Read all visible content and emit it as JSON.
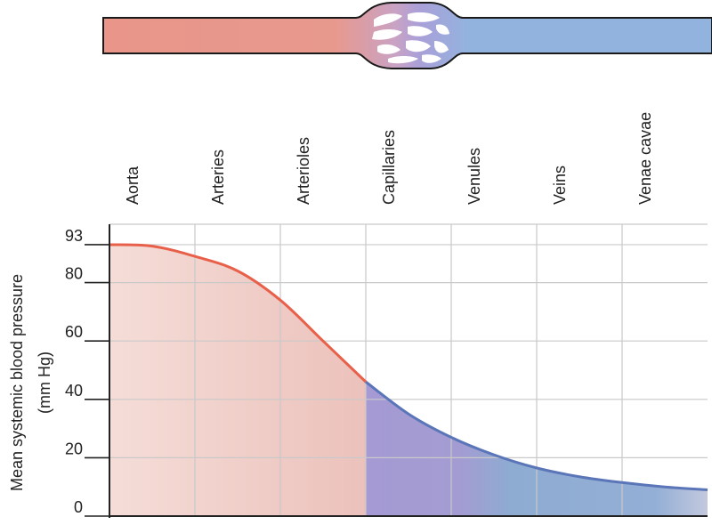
{
  "chart_data": {
    "type": "area",
    "categories": [
      "Aorta",
      "Arteries",
      "Arterioles",
      "Capillaries",
      "Venules",
      "Veins",
      "Venae cavae"
    ],
    "ylabel_lines": [
      "Mean systemic blood pressure",
      "(mm Hg)"
    ],
    "yticks": [
      "0",
      "20",
      "40",
      "60",
      "80",
      "93"
    ],
    "ylim": [
      0,
      100
    ],
    "grid": true,
    "series": [
      {
        "x": [
          0,
          0.5,
          1,
          1.5,
          2,
          2.5,
          3,
          3.5,
          4,
          4.5,
          5,
          5.5,
          6,
          6.5,
          7
        ],
        "values": [
          93,
          92.5,
          89,
          84,
          74,
          60,
          46,
          35,
          27,
          21,
          16.5,
          13.5,
          11.5,
          10,
          9
        ]
      }
    ],
    "colors": {
      "arterial_line": "#e8604a",
      "arterial_fill": "#f2d4cf",
      "venous_line": "#5a75b8",
      "venous_fill": "#8ba6d0",
      "capillary_fill": "#a599d2",
      "vessel_artery": "#e9958a",
      "vessel_vein": "#93b3df",
      "vessel_capillary": "#a9a0d8",
      "grid": "#c9c9c9",
      "axis": "#222222"
    }
  }
}
